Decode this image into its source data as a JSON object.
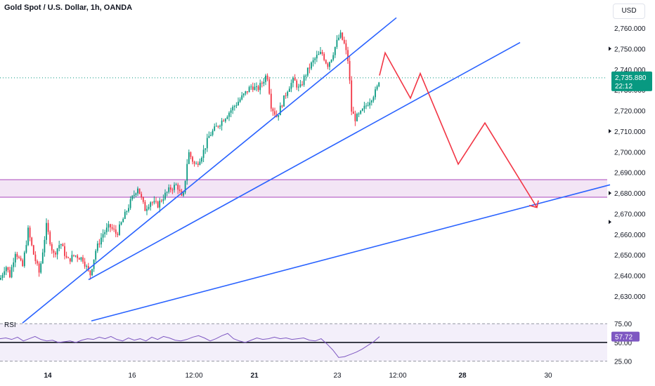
{
  "header": {
    "title": "Gold Spot / U.S. Dollar, 1h, OANDA",
    "currency": "USD"
  },
  "colors": {
    "up": "#089981",
    "down": "#f23645",
    "trendline": "#2962ff",
    "projection": "#f23645",
    "zone_fill": "#f3e5f5",
    "zone_border": "#ab47bc",
    "rsi_line": "#7e57c2",
    "price_tag": "#089981"
  },
  "chart_data": [
    {
      "type": "candlestick",
      "title": "Gold Spot / U.S. Dollar, 1h, OANDA",
      "y_tick_labels": [
        "2,760.000",
        "2,750.000",
        "2,740.000",
        "2,730.000",
        "2,720.000",
        "2,710.000",
        "2,700.000",
        "2,690.000",
        "2,680.000",
        "2,670.000",
        "2,660.000",
        "2,650.000",
        "2,640.000",
        "2,630.000"
      ],
      "y_ticks": [
        2760,
        2750,
        2740,
        2730,
        2720,
        2710,
        2700,
        2690,
        2680,
        2670,
        2660,
        2650,
        2640,
        2630
      ],
      "ylim": [
        2624,
        2767
      ],
      "x_tick_labels": [
        "14",
        "16",
        "12:00",
        "21",
        "23",
        "12:00",
        "28",
        "30"
      ],
      "x_tick_bold": [
        true,
        false,
        false,
        true,
        false,
        false,
        true,
        false
      ],
      "current_price": "2,735.880",
      "countdown": "22:12",
      "current_price_value": 2735.88,
      "zone": {
        "top": 2686.5,
        "bottom": 2678.0
      },
      "approx_path": [
        [
          0,
          2638
        ],
        [
          8,
          2645
        ],
        [
          14,
          2640
        ],
        [
          22,
          2652
        ],
        [
          32,
          2644
        ],
        [
          40,
          2662
        ],
        [
          48,
          2650
        ],
        [
          56,
          2641
        ],
        [
          66,
          2664
        ],
        [
          76,
          2650
        ],
        [
          86,
          2656
        ],
        [
          96,
          2647
        ],
        [
          106,
          2650
        ],
        [
          118,
          2648
        ],
        [
          128,
          2640
        ],
        [
          136,
          2652
        ],
        [
          146,
          2660
        ],
        [
          156,
          2664
        ],
        [
          166,
          2660
        ],
        [
          176,
          2668
        ],
        [
          186,
          2676
        ],
        [
          196,
          2683
        ],
        [
          206,
          2672
        ],
        [
          214,
          2676
        ],
        [
          224,
          2674
        ],
        [
          232,
          2678
        ],
        [
          242,
          2682
        ],
        [
          252,
          2684
        ],
        [
          260,
          2676
        ],
        [
          268,
          2700
        ],
        [
          278,
          2693
        ],
        [
          288,
          2699
        ],
        [
          298,
          2708
        ],
        [
          308,
          2712
        ],
        [
          318,
          2716
        ],
        [
          328,
          2720
        ],
        [
          338,
          2724
        ],
        [
          348,
          2728
        ],
        [
          358,
          2732
        ],
        [
          366,
          2730
        ],
        [
          374,
          2734
        ],
        [
          380,
          2738
        ],
        [
          386,
          2722
        ],
        [
          394,
          2717
        ],
        [
          402,
          2724
        ],
        [
          410,
          2731
        ],
        [
          418,
          2735
        ],
        [
          426,
          2730
        ],
        [
          434,
          2737
        ],
        [
          442,
          2742
        ],
        [
          450,
          2746
        ],
        [
          458,
          2748
        ],
        [
          466,
          2742
        ],
        [
          472,
          2746
        ],
        [
          478,
          2752
        ],
        [
          484,
          2757
        ],
        [
          490,
          2752
        ],
        [
          496,
          2743
        ],
        [
          500,
          2720
        ],
        [
          505,
          2716
        ],
        [
          512,
          2718
        ],
        [
          520,
          2722
        ],
        [
          528,
          2726
        ],
        [
          536,
          2730
        ],
        [
          540,
          2736
        ]
      ],
      "projection": [
        [
          540,
          2737
        ],
        [
          548,
          2748
        ],
        [
          584,
          2726
        ],
        [
          598,
          2738
        ],
        [
          652,
          2694
        ],
        [
          690,
          2714
        ],
        [
          764,
          2673
        ]
      ],
      "trendlines": [
        [
          [
            32,
            2617
          ],
          [
            564,
            2765
          ]
        ],
        [
          [
            126,
            2638
          ],
          [
            740,
            2753
          ]
        ],
        [
          [
            130,
            2618
          ],
          [
            868,
            2684
          ]
        ]
      ]
    },
    {
      "type": "line",
      "title": "RSI",
      "series": [
        {
          "name": "RSI",
          "current": "57.72"
        }
      ],
      "y_tick_labels": [
        "75.00",
        "50.00",
        "25.00"
      ],
      "y_ticks": [
        75,
        50,
        25
      ],
      "ylim": [
        20,
        78
      ],
      "values": [
        55,
        56,
        54,
        57,
        52,
        55,
        58,
        54,
        52,
        53,
        50,
        51,
        52,
        50,
        53,
        55,
        54,
        57,
        55,
        58,
        54,
        52,
        56,
        53,
        55,
        52,
        57,
        54,
        58,
        56,
        53,
        52,
        54,
        57,
        59,
        56,
        52,
        55,
        59,
        62,
        55,
        52,
        50,
        53,
        56,
        54,
        55,
        57,
        55,
        56,
        54,
        55,
        56,
        53,
        52,
        55,
        48,
        40,
        30,
        31,
        34,
        37,
        41,
        46,
        51,
        57.72
      ]
    }
  ]
}
